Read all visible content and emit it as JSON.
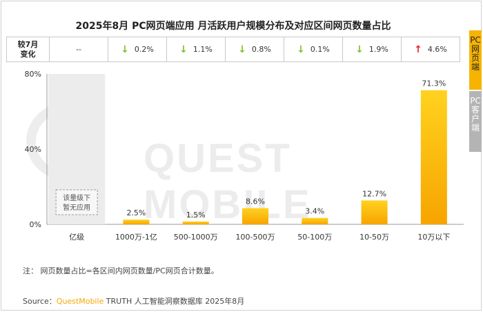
{
  "title": "2025年8月 PC网页端应用 月活跃用户规模分布及对应区间网页数量占比",
  "change_row": {
    "header_line1": "较7月",
    "header_line2": "变化",
    "cells": [
      {
        "text": "--",
        "direction": "none"
      },
      {
        "text": "0.2%",
        "direction": "down"
      },
      {
        "text": "1.1%",
        "direction": "down"
      },
      {
        "text": "0.8%",
        "direction": "down"
      },
      {
        "text": "0.1%",
        "direction": "down"
      },
      {
        "text": "1.9%",
        "direction": "down"
      },
      {
        "text": "4.6%",
        "direction": "up"
      }
    ],
    "arrow_down": "↓",
    "arrow_up": "↑"
  },
  "side_tabs": [
    {
      "label": "PC网页端",
      "active": true
    },
    {
      "label": "PC客户端",
      "active": false
    }
  ],
  "watermark": "QUEST MOBILE",
  "placeholder_note_line1": "该量级下",
  "placeholder_note_line2": "暂无应用",
  "chart_data": {
    "type": "bar",
    "categories": [
      "亿级",
      "1000万-1亿",
      "500-1000万",
      "100-500万",
      "50-100万",
      "10-50万",
      "10万以下"
    ],
    "values": [
      null,
      2.5,
      1.5,
      8.6,
      3.4,
      12.7,
      71.3
    ],
    "value_labels": [
      "",
      "2.5%",
      "1.5%",
      "8.6%",
      "3.4%",
      "12.7%",
      "71.3%"
    ],
    "ylim": [
      0,
      80
    ],
    "yticks": [
      "0%",
      "40%",
      "80%"
    ],
    "ytick_values": [
      0,
      40,
      80
    ],
    "colors": {
      "bar_top": "#ffd21f",
      "bar_bottom": "#f7a400",
      "axis": "#999999"
    }
  },
  "note": "注： 网页数量占比=各区间内网页数量/PC网页合计数量。",
  "source": {
    "prefix": "Source：",
    "brand": "QuestMobile",
    "suffix": " TRUTH 人工智能洞察数据库 2025年8月"
  }
}
